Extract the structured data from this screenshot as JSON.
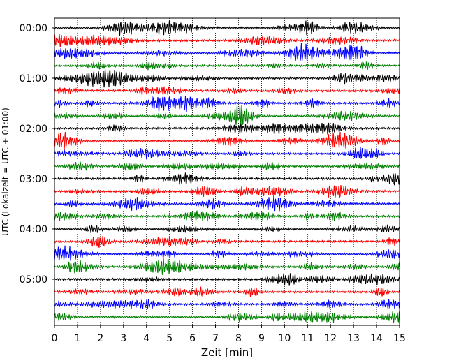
{
  "chart_data": {
    "type": "line",
    "plot_kind": "helicorder",
    "title": "",
    "xlabel": "Zeit  [min]",
    "ylabel": "UTC (Lokalzeit = UTC + 01:00)",
    "xlim": [
      0,
      15
    ],
    "x_ticks": [
      0,
      1,
      2,
      3,
      4,
      5,
      6,
      7,
      8,
      9,
      10,
      11,
      12,
      13,
      14,
      15
    ],
    "x_tick_labels": [
      "0",
      "1",
      "2",
      "3",
      "4",
      "5",
      "6",
      "7",
      "8",
      "9",
      "10",
      "11",
      "12",
      "13",
      "14",
      "15"
    ],
    "y_ticks": [
      "00:00",
      "01:00",
      "02:00",
      "03:00",
      "04:00",
      "05:00"
    ],
    "minutes_per_line": 15,
    "line_count": 24,
    "line_colors": [
      "#000000",
      "#ff0000",
      "#0000ff",
      "#008000"
    ],
    "grid": "vertical dotted",
    "legend": "none"
  }
}
